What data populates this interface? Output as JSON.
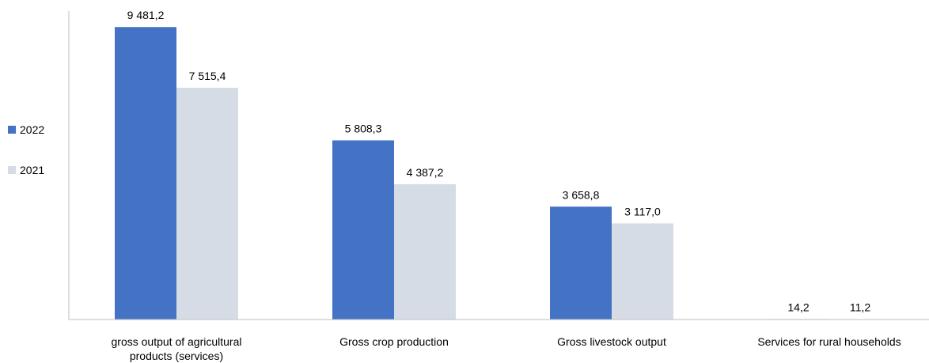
{
  "chart_data": {
    "type": "bar",
    "categories": [
      [
        "gross output of agricultural",
        "products (services)"
      ],
      [
        "Gross crop production"
      ],
      [
        "Gross livestock output"
      ],
      [
        "Services for rural households"
      ]
    ],
    "series": [
      {
        "name": "2022",
        "color": "#4472C4",
        "values": [
          9481.2,
          5808.3,
          3658.8,
          14.2
        ],
        "labels": [
          "9 481,2",
          "5 808,3",
          "3 658,8",
          "14,2"
        ]
      },
      {
        "name": "2021",
        "color": "#D6DCE5",
        "values": [
          7515.4,
          4387.2,
          3117.0,
          11.2
        ],
        "labels": [
          "7 515,4",
          "4 387,2",
          "3 117,0",
          "11,2"
        ]
      }
    ],
    "ylim": [
      0,
      10000
    ],
    "grid": false,
    "legend_position": "left",
    "title": "",
    "xlabel": "",
    "ylabel": ""
  }
}
